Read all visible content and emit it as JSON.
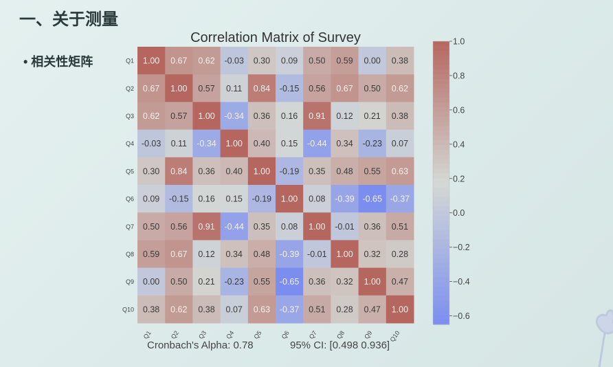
{
  "slide": {
    "title": "一、关于测量",
    "bullet": "• 相关性矩阵"
  },
  "chart_data": {
    "type": "heatmap",
    "title": "Correlation Matrix of Survey",
    "rows": [
      "Q1",
      "Q2",
      "Q3",
      "Q4",
      "Q5",
      "Q6",
      "Q7",
      "Q8",
      "Q9",
      "Q10"
    ],
    "cols": [
      "Q1",
      "Q2",
      "Q3",
      "Q4",
      "Q5",
      "Q6",
      "Q7",
      "Q8",
      "Q9",
      "Q10"
    ],
    "values": [
      [
        1.0,
        0.67,
        0.62,
        -0.03,
        0.3,
        0.09,
        0.5,
        0.59,
        0.0,
        0.38
      ],
      [
        0.67,
        1.0,
        0.57,
        0.11,
        0.84,
        -0.15,
        0.56,
        0.67,
        0.5,
        0.62
      ],
      [
        0.62,
        0.57,
        1.0,
        -0.34,
        0.36,
        0.16,
        0.91,
        0.12,
        0.21,
        0.38
      ],
      [
        -0.03,
        0.11,
        -0.34,
        1.0,
        0.4,
        0.15,
        -0.44,
        0.34,
        -0.23,
        0.07
      ],
      [
        0.3,
        0.84,
        0.36,
        0.4,
        1.0,
        -0.19,
        0.35,
        0.48,
        0.55,
        0.63
      ],
      [
        0.09,
        -0.15,
        0.16,
        0.15,
        -0.19,
        1.0,
        0.08,
        -0.39,
        -0.65,
        -0.37
      ],
      [
        0.5,
        0.56,
        0.91,
        -0.44,
        0.35,
        0.08,
        1.0,
        -0.01,
        0.36,
        0.51
      ],
      [
        0.59,
        0.67,
        0.12,
        0.34,
        0.48,
        -0.39,
        -0.01,
        1.0,
        0.32,
        0.28
      ],
      [
        0.0,
        0.5,
        0.21,
        -0.23,
        0.55,
        -0.65,
        0.36,
        0.32,
        1.0,
        0.47
      ],
      [
        0.38,
        0.62,
        0.38,
        0.07,
        0.63,
        -0.37,
        0.51,
        0.28,
        0.47,
        1.0
      ]
    ],
    "colorbar": {
      "range": [
        -0.65,
        1.0
      ],
      "ticks": [
        1.0,
        0.8,
        0.6,
        0.4,
        0.2,
        0.0,
        -0.2,
        -0.4,
        -0.6
      ],
      "tick_labels": [
        "1.0",
        "0.8",
        "0.6",
        "0.4",
        "0.2",
        "0.0",
        "−0.2",
        "−0.4",
        "−0.6"
      ]
    },
    "colormap": {
      "low": "#7b8ef0",
      "mid": "#d4d8d5",
      "high": "#b5675f"
    },
    "annotations": {
      "alpha": "Cronbach's Alpha: 0.78",
      "ci": "95% CI: [0.498 0.936]"
    }
  }
}
